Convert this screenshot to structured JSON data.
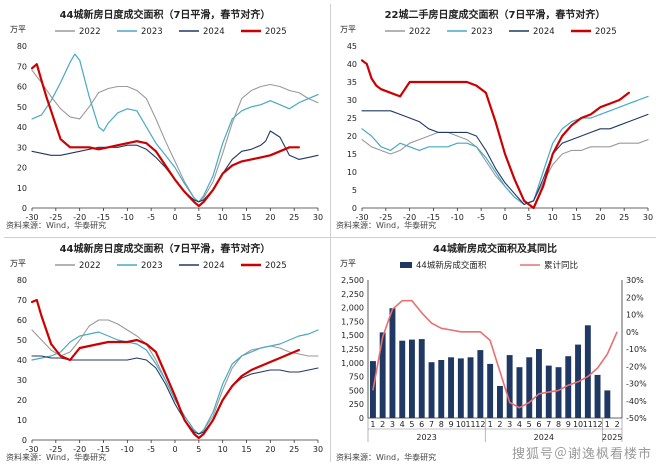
{
  "watermark": "搜狐号＠谢逸枫看楼市",
  "chart_data": [
    {
      "id": "p1",
      "type": "line",
      "title": "44城新房日度成交面积（7日平滑，春节对齐）",
      "ylabel": "万平",
      "source": "资料来源：Wind，华泰研究",
      "xlim": [
        -30,
        30
      ],
      "ylim": [
        0,
        80
      ],
      "xticks": [
        -30,
        -25,
        -20,
        -15,
        -10,
        -5,
        0,
        5,
        10,
        15,
        20,
        25,
        30
      ],
      "yticks": [
        0,
        10,
        20,
        30,
        40,
        50,
        60,
        70,
        80
      ],
      "legend": "top",
      "series": [
        {
          "name": "2022",
          "color": "#9a9a9a",
          "width": 1.1,
          "x": [
            -30,
            -28,
            -26,
            -24,
            -22,
            -20,
            -18,
            -16,
            -14,
            -12,
            -10,
            -8,
            -6,
            -4,
            -2,
            0,
            2,
            4,
            5,
            6,
            8,
            10,
            12,
            14,
            16,
            18,
            20,
            22,
            24,
            26,
            28,
            30
          ],
          "y": [
            68,
            62,
            55,
            49,
            45,
            44,
            50,
            57,
            59,
            60,
            60,
            58,
            54,
            44,
            33,
            23,
            13,
            5,
            3,
            5,
            13,
            27,
            42,
            54,
            58,
            60,
            61,
            60,
            58,
            57,
            54,
            52
          ]
        },
        {
          "name": "2023",
          "color": "#48a9c5",
          "width": 1.2,
          "x": [
            -30,
            -28,
            -26,
            -24,
            -22,
            -21,
            -20,
            -18,
            -16,
            -15,
            -14,
            -12,
            -10,
            -8,
            -6,
            -4,
            -2,
            0,
            2,
            4,
            5,
            6,
            8,
            10,
            12,
            14,
            16,
            18,
            20,
            22,
            24,
            26,
            28,
            30
          ],
          "y": [
            44,
            46,
            53,
            62,
            72,
            76,
            73,
            55,
            40,
            38,
            42,
            47,
            49,
            48,
            40,
            32,
            26,
            20,
            12,
            5,
            3,
            6,
            16,
            32,
            44,
            48,
            50,
            51,
            53,
            51,
            49,
            52,
            54,
            56
          ]
        },
        {
          "name": "2024",
          "color": "#1f3864",
          "width": 1.1,
          "x": [
            -30,
            -28,
            -26,
            -24,
            -22,
            -20,
            -18,
            -16,
            -14,
            -12,
            -10,
            -8,
            -6,
            -4,
            -2,
            0,
            2,
            4,
            5,
            6,
            8,
            10,
            12,
            14,
            16,
            18,
            19,
            20,
            22,
            24,
            26,
            28,
            30
          ],
          "y": [
            28,
            27,
            26,
            26,
            27,
            28,
            29,
            30,
            30,
            30,
            31,
            31,
            29,
            25,
            20,
            14,
            8,
            4,
            3,
            4,
            9,
            17,
            24,
            28,
            29,
            31,
            33,
            38,
            35,
            26,
            24,
            25,
            26
          ]
        },
        {
          "name": "2025",
          "color": "#cc0000",
          "width": 2.2,
          "x": [
            -30,
            -29,
            -28,
            -27,
            -26,
            -25,
            -24,
            -22,
            -20,
            -18,
            -16,
            -14,
            -12,
            -10,
            -8,
            -6,
            -4,
            -2,
            0,
            2,
            4,
            5,
            6,
            8,
            10,
            12,
            14,
            16,
            18,
            20,
            22,
            24,
            26
          ],
          "y": [
            69,
            71,
            63,
            55,
            48,
            41,
            34,
            30,
            30,
            30,
            29,
            30,
            31,
            32,
            33,
            32,
            28,
            21,
            14,
            8,
            3,
            1,
            3,
            9,
            17,
            21,
            23,
            24,
            25,
            26,
            28,
            30,
            30
          ]
        }
      ]
    },
    {
      "id": "p2",
      "type": "line",
      "title": "22城二手房日度成交面积（7日平滑，春节对齐）",
      "ylabel": "万平",
      "source": "资料来源：Wind，华泰研究",
      "xlim": [
        -30,
        30
      ],
      "ylim": [
        0,
        45
      ],
      "xticks": [
        -30,
        -25,
        -20,
        -15,
        -10,
        -5,
        0,
        5,
        10,
        15,
        20,
        25,
        30
      ],
      "yticks": [
        0,
        5,
        10,
        15,
        20,
        25,
        30,
        35,
        40,
        45
      ],
      "legend": "top",
      "series": [
        {
          "name": "2022",
          "color": "#9a9a9a",
          "width": 1.1,
          "x": [
            -30,
            -28,
            -26,
            -24,
            -22,
            -20,
            -18,
            -16,
            -14,
            -12,
            -10,
            -8,
            -6,
            -4,
            -2,
            0,
            2,
            4,
            6,
            8,
            10,
            12,
            14,
            16,
            18,
            20,
            22,
            24,
            26,
            28,
            30
          ],
          "y": [
            19,
            17,
            16,
            15,
            16,
            18,
            19,
            20,
            21,
            21,
            20,
            19,
            17,
            13,
            9,
            6,
            3,
            1,
            2,
            7,
            12,
            15,
            16,
            16,
            17,
            17,
            17,
            18,
            18,
            18,
            19
          ]
        },
        {
          "name": "2023",
          "color": "#48a9c5",
          "width": 1.2,
          "x": [
            -30,
            -28,
            -26,
            -24,
            -22,
            -20,
            -18,
            -16,
            -14,
            -12,
            -10,
            -8,
            -6,
            -4,
            -2,
            0,
            2,
            4,
            6,
            8,
            10,
            12,
            14,
            16,
            18,
            20,
            22,
            24,
            26,
            28,
            30
          ],
          "y": [
            22,
            20,
            17,
            16,
            18,
            17,
            16,
            17,
            17,
            17,
            18,
            18,
            17,
            14,
            10,
            6,
            3,
            1,
            2,
            10,
            18,
            22,
            24,
            25,
            25,
            26,
            27,
            28,
            29,
            30,
            31
          ]
        },
        {
          "name": "2024",
          "color": "#1f3864",
          "width": 1.1,
          "x": [
            -30,
            -28,
            -26,
            -24,
            -22,
            -20,
            -18,
            -16,
            -14,
            -12,
            -10,
            -8,
            -6,
            -4,
            -2,
            0,
            2,
            4,
            6,
            8,
            10,
            12,
            14,
            16,
            18,
            20,
            22,
            24,
            26,
            28,
            30
          ],
          "y": [
            27,
            27,
            27,
            27,
            26,
            25,
            24,
            22,
            21,
            21,
            21,
            21,
            20,
            16,
            11,
            7,
            4,
            1,
            2,
            8,
            15,
            18,
            19,
            20,
            21,
            22,
            22,
            23,
            24,
            25,
            26
          ]
        },
        {
          "name": "2025",
          "color": "#cc0000",
          "width": 2.2,
          "x": [
            -30,
            -29,
            -28,
            -27,
            -26,
            -24,
            -22,
            -21,
            -20,
            -18,
            -16,
            -14,
            -12,
            -10,
            -8,
            -6,
            -4,
            -2,
            0,
            2,
            4,
            6,
            8,
            10,
            12,
            14,
            16,
            18,
            20,
            22,
            24,
            26
          ],
          "y": [
            41,
            40,
            36,
            34,
            33,
            32,
            31,
            33,
            35,
            35,
            35,
            35,
            35,
            35,
            35,
            34,
            32,
            24,
            15,
            8,
            2,
            0,
            6,
            15,
            20,
            23,
            25,
            26,
            28,
            29,
            30,
            32
          ]
        }
      ]
    },
    {
      "id": "p3",
      "type": "line",
      "title": "44城新房日度成交面积（7日平滑，春节对齐）",
      "ylabel": "万平",
      "source": "资料来源：Wind，华泰研究",
      "xlim": [
        -30,
        30
      ],
      "ylim": [
        0,
        80
      ],
      "xticks": [
        -30,
        -25,
        -20,
        -15,
        -10,
        -5,
        0,
        5,
        10,
        15,
        20,
        25,
        30
      ],
      "yticks": [
        0,
        10,
        20,
        30,
        40,
        50,
        60,
        70,
        80
      ],
      "legend": "top",
      "series": [
        {
          "name": "2022",
          "color": "#9a9a9a",
          "width": 1.1,
          "x": [
            -30,
            -28,
            -26,
            -24,
            -22,
            -20,
            -18,
            -16,
            -14,
            -12,
            -10,
            -8,
            -6,
            -4,
            -2,
            0,
            2,
            4,
            5,
            6,
            8,
            10,
            12,
            14,
            16,
            18,
            20,
            22,
            24,
            26,
            28,
            30
          ],
          "y": [
            55,
            50,
            45,
            42,
            44,
            50,
            57,
            60,
            60,
            58,
            55,
            52,
            48,
            40,
            30,
            20,
            12,
            5,
            3,
            5,
            12,
            25,
            36,
            42,
            45,
            46,
            47,
            46,
            44,
            43,
            42,
            42
          ]
        },
        {
          "name": "2023",
          "color": "#48a9c5",
          "width": 1.2,
          "x": [
            -30,
            -28,
            -26,
            -24,
            -22,
            -20,
            -18,
            -16,
            -14,
            -12,
            -10,
            -8,
            -6,
            -4,
            -2,
            0,
            2,
            4,
            5,
            6,
            8,
            10,
            12,
            14,
            16,
            18,
            20,
            22,
            24,
            26,
            28,
            30
          ],
          "y": [
            40,
            41,
            42,
            44,
            49,
            52,
            53,
            54,
            52,
            50,
            49,
            48,
            45,
            38,
            30,
            20,
            12,
            5,
            3,
            5,
            14,
            28,
            38,
            42,
            44,
            46,
            47,
            48,
            50,
            52,
            53,
            55
          ]
        },
        {
          "name": "2024",
          "color": "#1f3864",
          "width": 1.1,
          "x": [
            -30,
            -28,
            -26,
            -24,
            -22,
            -20,
            -18,
            -16,
            -14,
            -12,
            -10,
            -8,
            -6,
            -4,
            -2,
            0,
            2,
            4,
            5,
            6,
            8,
            10,
            12,
            14,
            16,
            18,
            20,
            22,
            24,
            26,
            28,
            30
          ],
          "y": [
            42,
            42,
            41,
            41,
            40,
            40,
            40,
            40,
            40,
            40,
            40,
            41,
            40,
            36,
            28,
            18,
            10,
            4,
            3,
            4,
            10,
            20,
            27,
            31,
            33,
            34,
            35,
            35,
            34,
            34,
            35,
            36
          ]
        },
        {
          "name": "2025",
          "color": "#cc0000",
          "width": 2.2,
          "x": [
            -30,
            -29,
            -28,
            -27,
            -26,
            -24,
            -22,
            -20,
            -18,
            -16,
            -14,
            -12,
            -10,
            -8,
            -6,
            -4,
            -2,
            0,
            2,
            4,
            5,
            6,
            8,
            10,
            12,
            14,
            16,
            18,
            20,
            22,
            24,
            26
          ],
          "y": [
            69,
            70,
            62,
            55,
            48,
            42,
            40,
            46,
            47,
            48,
            49,
            49,
            49,
            50,
            48,
            44,
            33,
            22,
            10,
            3,
            1,
            3,
            10,
            20,
            27,
            32,
            35,
            37,
            39,
            41,
            43,
            45
          ]
        }
      ]
    },
    {
      "id": "p4",
      "type": "bar",
      "title": "44城新房成交面积及其同比",
      "ylabel": "万平",
      "source": "资料来源：Wind，华泰研究",
      "ylim": [
        0,
        2500
      ],
      "yticks": [
        0,
        250,
        500,
        750,
        1000,
        1250,
        1500,
        1750,
        2000,
        2250,
        2500
      ],
      "y2lim": [
        -50,
        30
      ],
      "y2ticks": [
        -50,
        -40,
        -30,
        -20,
        -10,
        0,
        10,
        20,
        30
      ],
      "legend": "top",
      "months": [
        "1",
        "2",
        "3",
        "4",
        "5",
        "6",
        "7",
        "8",
        "9",
        "10",
        "11",
        "12",
        "1",
        "2",
        "3",
        "4",
        "5",
        "6",
        "7",
        "8",
        "9",
        "10",
        "11",
        "12",
        "1",
        "2"
      ],
      "year_groups": [
        {
          "label": "2023",
          "start": 0,
          "count": 12
        },
        {
          "label": "2024",
          "start": 12,
          "count": 12
        },
        {
          "label": "2025",
          "start": 24,
          "count": 2
        }
      ],
      "bars": {
        "name": "44城新房成交面积",
        "color": "#1f3864",
        "values": [
          1030,
          1550,
          1990,
          1400,
          1420,
          1430,
          1010,
          1050,
          1100,
          1080,
          1100,
          1230,
          980,
          580,
          1140,
          920,
          1100,
          1250,
          950,
          920,
          1120,
          1330,
          1680,
          780,
          500,
          0
        ]
      },
      "line": {
        "name": "累计同比",
        "color": "#e87070",
        "unit": "%",
        "values": [
          -34,
          -3,
          13,
          18,
          18,
          11,
          5,
          2,
          1,
          0,
          0,
          0,
          -5,
          -23,
          -41,
          -44,
          -41,
          -36,
          -35,
          -34,
          -31,
          -29,
          -26,
          -21,
          -13,
          0
        ]
      }
    }
  ]
}
